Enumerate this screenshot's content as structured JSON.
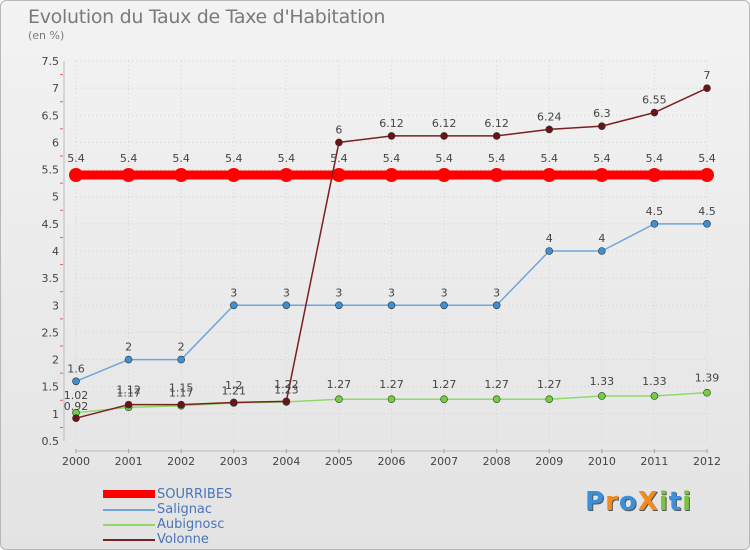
{
  "chart_data": {
    "type": "line",
    "title": "Evolution du Taux de Taxe d'Habitation",
    "ylabel": "(en %)",
    "xlabel": "",
    "ylim": [
      0.5,
      7.5
    ],
    "yticks": [
      "0.5",
      "1",
      "1.5",
      "2",
      "2.5",
      "3",
      "3.5",
      "4",
      "4.5",
      "5",
      "5.5",
      "6",
      "6.5",
      "7",
      "7.5"
    ],
    "categories": [
      "2000",
      "2001",
      "2002",
      "2003",
      "2004",
      "2005",
      "2006",
      "2007",
      "2008",
      "2009",
      "2010",
      "2011",
      "2012"
    ],
    "series": [
      {
        "name": "SOURRIBES",
        "color": "#ff0000",
        "marker": "#ff0000",
        "values": [
          5.4,
          5.4,
          5.4,
          5.4,
          5.4,
          5.4,
          5.4,
          5.4,
          5.4,
          5.4,
          5.4,
          5.4,
          5.4
        ],
        "labels": [
          "5.4",
          "5.4",
          "5.4",
          "5.4",
          "5.4",
          "5.4",
          "5.4",
          "5.4",
          "5.4",
          "5.4",
          "5.4",
          "5.4",
          "5.4"
        ]
      },
      {
        "name": "Salignac",
        "color": "#6fa6d9",
        "marker": "#3d8fd6",
        "values": [
          1.6,
          2,
          2,
          3,
          3,
          3,
          3,
          3,
          3,
          4,
          4,
          4.5,
          4.5
        ],
        "labels": [
          "1.6",
          "2",
          "2",
          "3",
          "3",
          "3",
          "3",
          "3",
          "3",
          "4",
          "4",
          "4.5",
          "4.5"
        ]
      },
      {
        "name": "Aubignosc",
        "color": "#8fd96a",
        "marker": "#6fd13c",
        "values": [
          1.02,
          1.12,
          1.15,
          1.2,
          1.22,
          1.27,
          1.27,
          1.27,
          1.27,
          1.27,
          1.33,
          1.33,
          1.39
        ],
        "labels": [
          "1.02",
          "1.12",
          "1.15",
          "1.2",
          "1.22",
          "1.27",
          "1.27",
          "1.27",
          "1.27",
          "1.27",
          "1.33",
          "1.33",
          "1.39"
        ]
      },
      {
        "name": "Volonne",
        "color": "#7a2020",
        "marker": "#6b1414",
        "values": [
          0.92,
          1.17,
          1.17,
          1.21,
          1.23,
          6,
          6.12,
          6.12,
          6.12,
          6.24,
          6.3,
          6.55,
          7
        ],
        "labels": [
          "0.92",
          "1.17",
          "1.17",
          "1.21",
          "1.23",
          "6",
          "6.12",
          "6.12",
          "6.12",
          "6.24",
          "6.3",
          "6.55",
          "7"
        ]
      }
    ]
  },
  "logo": {
    "text": "ProXiti"
  }
}
